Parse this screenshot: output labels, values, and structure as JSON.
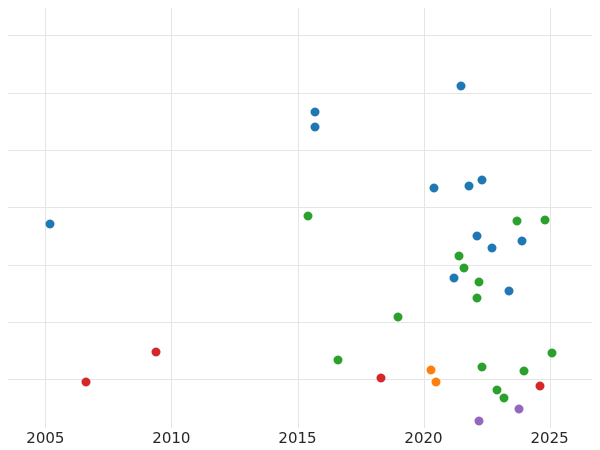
{
  "chart_data": {
    "type": "scatter",
    "title": "",
    "xlabel": "",
    "ylabel": "",
    "grid": true,
    "legend": "none",
    "x_ticks": [
      2005,
      2010,
      2015,
      2020,
      2025
    ],
    "x_tick_labels": [
      "2005",
      "2010",
      "2015",
      "2020",
      "2025"
    ],
    "xlim": [
      2003.2,
      2027.0
    ],
    "ylim": [
      0,
      7.5
    ],
    "y_gridline_values": [
      1,
      2,
      3,
      4,
      5,
      6,
      7
    ],
    "y_axis_note": "no y-axis tick labels visible; y values in gridline units",
    "colors": {
      "blue": "#1f77b4",
      "orange": "#ff7f0e",
      "green": "#2ca02c",
      "red": "#d62728",
      "purple": "#9467bd",
      "grid": "#e5e5e5",
      "tick_label": "#262626"
    },
    "series": [
      {
        "name": "blue",
        "color": "#1f77b4",
        "points": [
          [
            2005.2,
            3.71
          ],
          [
            2015.7,
            5.66
          ],
          [
            2015.7,
            5.4
          ],
          [
            2021.5,
            6.12
          ],
          [
            2020.4,
            4.34
          ],
          [
            2021.8,
            4.37
          ],
          [
            2022.3,
            4.48
          ],
          [
            2022.1,
            3.5
          ],
          [
            2022.7,
            3.29
          ],
          [
            2023.9,
            3.41
          ],
          [
            2021.2,
            2.77
          ],
          [
            2023.4,
            2.54
          ]
        ]
      },
      {
        "name": "green",
        "color": "#2ca02c",
        "points": [
          [
            2015.4,
            3.85
          ],
          [
            2023.7,
            3.76
          ],
          [
            2024.8,
            3.78
          ],
          [
            2021.4,
            3.15
          ],
          [
            2021.6,
            2.94
          ],
          [
            2022.2,
            2.7
          ],
          [
            2022.1,
            2.42
          ],
          [
            2019.0,
            2.09
          ],
          [
            2016.6,
            1.34
          ],
          [
            2022.3,
            1.21
          ],
          [
            2024.0,
            1.14
          ],
          [
            2025.1,
            1.46
          ],
          [
            2022.9,
            0.81
          ],
          [
            2023.2,
            0.67
          ]
        ]
      },
      {
        "name": "red",
        "color": "#d62728",
        "points": [
          [
            2006.6,
            0.95
          ],
          [
            2009.4,
            1.47
          ],
          [
            2018.3,
            1.02
          ],
          [
            2024.6,
            0.88
          ]
        ]
      },
      {
        "name": "orange",
        "color": "#ff7f0e",
        "points": [
          [
            2020.3,
            1.16
          ],
          [
            2020.5,
            0.95
          ]
        ]
      },
      {
        "name": "purple",
        "color": "#9467bd",
        "points": [
          [
            2022.2,
            0.27
          ],
          [
            2023.8,
            0.48
          ]
        ]
      }
    ]
  }
}
